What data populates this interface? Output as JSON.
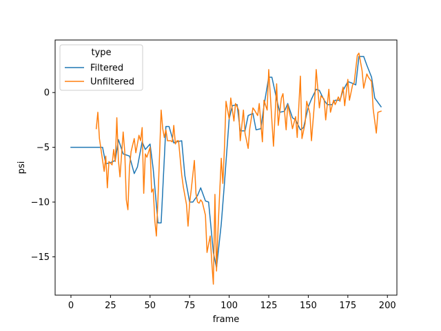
{
  "chart_data": {
    "type": "line",
    "title": "",
    "xlabel": "frame",
    "ylabel": "psi",
    "xlim": [
      -10,
      206
    ],
    "ylim": [
      -18.5,
      4.8
    ],
    "xticks": [
      0,
      25,
      50,
      75,
      100,
      125,
      150,
      175,
      200
    ],
    "yticks": [
      -15,
      -10,
      -5,
      0
    ],
    "ytick_labels": [
      "−15",
      "−10",
      "−5",
      "0"
    ],
    "grid": false,
    "legend": {
      "title": "type",
      "placement": "top-left"
    },
    "series": [
      {
        "name": "Filtered",
        "color": "#1f77b4",
        "x": [
          0,
          10,
          20,
          22,
          25,
          28,
          30,
          33,
          35,
          37,
          40,
          42,
          45,
          47,
          50,
          52,
          55,
          57,
          60,
          62,
          65,
          67,
          70,
          72,
          75,
          77,
          80,
          82,
          85,
          87,
          90,
          92,
          95,
          97,
          100,
          102,
          105,
          107,
          110,
          112,
          115,
          117,
          120,
          122,
          125,
          127,
          130,
          132,
          135,
          137,
          140,
          142,
          145,
          147,
          150,
          152,
          155,
          157,
          160,
          162,
          165,
          167,
          170,
          172,
          175,
          177,
          180,
          182,
          185,
          187,
          190,
          192,
          195,
          196
        ],
        "y": [
          -5,
          -5,
          -5,
          -6.5,
          -6.4,
          -6.2,
          -4.3,
          -5.6,
          -5.7,
          -5.8,
          -7.4,
          -6.8,
          -4.5,
          -5.2,
          -4.7,
          -7,
          -11.9,
          -11.9,
          -3.1,
          -3.1,
          -4.6,
          -4.5,
          -4.4,
          -7.6,
          -10,
          -10,
          -9.4,
          -8.7,
          -9.9,
          -10,
          -14.6,
          -16,
          -12,
          -8.3,
          -2.4,
          -1.2,
          -1.1,
          -3.5,
          -3.5,
          -2.1,
          -1.9,
          -3.4,
          -3.3,
          -1.2,
          1.4,
          1.4,
          -0.6,
          -1.8,
          -1.7,
          -1,
          -2.3,
          -2.5,
          -3.4,
          -3.2,
          -1.3,
          -0.6,
          0.3,
          0.2,
          -0.7,
          -1.1,
          -1.1,
          -0.7,
          -0.7,
          0.2,
          1,
          0.9,
          0.7,
          3.3,
          3.3,
          2.5,
          1.4,
          -0.5,
          -1.1,
          -1.3
        ]
      },
      {
        "name": "Unfiltered",
        "color": "#ff7f0e",
        "x": [
          16,
          17,
          18,
          20,
          21,
          22,
          23,
          24,
          26,
          27,
          28,
          29,
          30,
          31,
          33,
          34,
          35,
          36,
          37,
          38,
          40,
          41,
          43,
          44,
          45,
          46,
          47,
          48,
          50,
          51,
          52,
          53,
          54,
          55,
          56,
          57,
          58,
          59,
          60,
          61,
          63,
          64,
          65,
          66,
          67,
          68,
          70,
          71,
          73,
          74,
          75,
          76,
          78,
          79,
          80,
          81,
          82,
          83,
          85,
          86,
          88,
          89,
          90,
          91,
          92,
          93,
          95,
          96,
          97,
          98,
          100,
          101,
          103,
          104,
          106,
          107,
          109,
          110,
          112,
          113,
          115,
          116,
          118,
          119,
          121,
          122,
          124,
          125,
          127,
          128,
          130,
          131,
          133,
          134,
          136,
          137,
          139,
          140,
          142,
          143,
          145,
          146,
          148,
          149,
          151,
          152,
          154,
          155,
          157,
          158,
          160,
          161,
          163,
          164,
          166,
          167,
          169,
          170,
          172,
          173,
          175,
          176,
          178,
          179,
          181,
          182,
          184,
          185,
          187,
          188,
          190,
          191,
          193,
          194,
          196
        ],
        "y": [
          -3.3,
          -1.8,
          -4.2,
          -6.2,
          -7.2,
          -5.8,
          -8.7,
          -6.3,
          -6.6,
          -5.2,
          -6.3,
          -2.3,
          -6.2,
          -7.7,
          -3.6,
          -5.4,
          -9.8,
          -10.7,
          -6.8,
          -5.4,
          -4.2,
          -5.5,
          -3.9,
          -4.4,
          -3.2,
          -9.2,
          -5.6,
          -5.9,
          -5,
          -9.1,
          -8.8,
          -11.7,
          -13.1,
          -9.7,
          -5.7,
          -1.6,
          -3.3,
          -4.1,
          -3.4,
          -4.4,
          -4.4,
          -4.5,
          -3,
          -4.7,
          -4.4,
          -4.4,
          -7.5,
          -8.6,
          -10.2,
          -12.2,
          -10.1,
          -8.9,
          -6.2,
          -9.2,
          -10,
          -10.1,
          -9.8,
          -10,
          -11.2,
          -14.6,
          -13.1,
          -15.5,
          -17.5,
          -9.3,
          -16.3,
          -12.3,
          -6,
          -8.3,
          -5.1,
          -0.8,
          -2.4,
          -0.5,
          -2.6,
          -1,
          -1.6,
          -4.4,
          -1.6,
          -3.7,
          -5.1,
          -3.3,
          -1.4,
          -1.6,
          -2.1,
          -1,
          -4.5,
          -0.7,
          -1.6,
          2.1,
          -2.6,
          -4.9,
          0.8,
          -3,
          -0.5,
          -0.1,
          -3.4,
          -1.1,
          -2.4,
          -3.3,
          -2.2,
          -4.1,
          1.5,
          -4.2,
          -2.8,
          -0.8,
          -1.9,
          -4.4,
          -0.8,
          2.1,
          -1.4,
          -0.3,
          -0.6,
          -2.5,
          0.3,
          -1.8,
          -0.7,
          -1.1,
          -0.4,
          -0.8,
          0.5,
          -1.2,
          1.2,
          -0.7,
          0.7,
          0.9,
          3.4,
          3.6,
          2,
          0.4,
          1.7,
          1.4,
          1,
          -1.5,
          -3.7,
          -1.8,
          -1.7
        ]
      }
    ]
  }
}
